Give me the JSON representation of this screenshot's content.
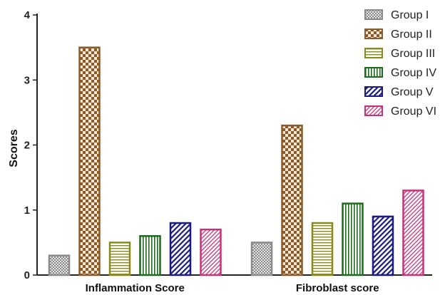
{
  "chart_data": {
    "type": "bar",
    "title": "",
    "xlabel": "",
    "ylabel": "Scores",
    "ylim": [
      0,
      4
    ],
    "yticks": [
      0,
      1,
      2,
      3,
      4
    ],
    "categories": [
      "Inflammation Score",
      "Fibroblast score"
    ],
    "grid": false,
    "legend_position": "top-right",
    "series": [
      {
        "name": "Group I",
        "values": [
          0.3,
          0.5
        ],
        "color": "#8a8a8a",
        "pattern": "checker-fine"
      },
      {
        "name": "Group II",
        "values": [
          3.5,
          2.3
        ],
        "color": "#8a5a2b",
        "pattern": "checker-coarse"
      },
      {
        "name": "Group III",
        "values": [
          0.5,
          0.8
        ],
        "color": "#8a8a1a",
        "pattern": "horizontal"
      },
      {
        "name": "Group IV",
        "values": [
          0.6,
          1.1
        ],
        "color": "#1a6b1a",
        "pattern": "vertical"
      },
      {
        "name": "Group V",
        "values": [
          0.8,
          0.9
        ],
        "color": "#1a1a80",
        "pattern": "diagonal"
      },
      {
        "name": "Group VI",
        "values": [
          0.7,
          1.3
        ],
        "color": "#c8327a",
        "pattern": "diagonal-fine"
      }
    ]
  }
}
